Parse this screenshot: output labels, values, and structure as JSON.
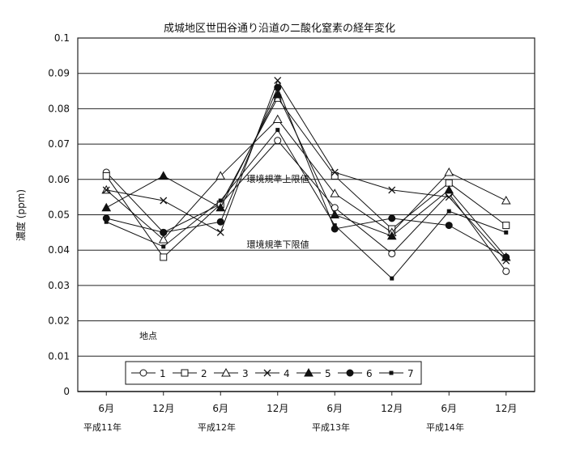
{
  "chart_data": {
    "type": "line",
    "title": "成城地区世田谷通り沿道の二酸化窒素の経年変化",
    "ylabel": "濃度 (ppm)",
    "xlabel": "",
    "ylim": [
      0,
      0.1
    ],
    "yticks": [
      "0",
      "0.01",
      "0.02",
      "0.03",
      "0.04",
      "0.05",
      "0.06",
      "0.07",
      "0.08",
      "0.09",
      "0.1"
    ],
    "categories": [
      "6月",
      "12月",
      "6月",
      "12月",
      "6月",
      "12月",
      "6月",
      "12月"
    ],
    "year_labels": [
      "平成11年",
      "平成12年",
      "平成13年",
      "平成14年"
    ],
    "grid": true,
    "legend_title": "地点",
    "legend_position": "bottom-left",
    "annotations": [
      "環境規準上限値",
      "環境規準下限値"
    ],
    "series": [
      {
        "name": "1",
        "marker": "circle-open",
        "values": [
          0.062,
          0.045,
          0.053,
          0.071,
          0.052,
          0.039,
          0.056,
          0.034
        ]
      },
      {
        "name": "2",
        "marker": "square-open",
        "values": [
          0.061,
          0.038,
          0.053,
          0.083,
          0.061,
          0.046,
          0.059,
          0.047
        ]
      },
      {
        "name": "3",
        "marker": "triangle-open",
        "values": [
          0.057,
          0.043,
          0.061,
          0.077,
          0.056,
          0.045,
          0.062,
          0.054
        ]
      },
      {
        "name": "4",
        "marker": "x",
        "values": [
          0.057,
          0.054,
          0.045,
          0.088,
          0.062,
          0.057,
          0.055,
          0.037
        ]
      },
      {
        "name": "5",
        "marker": "triangle-filled",
        "values": [
          0.052,
          0.061,
          0.052,
          0.084,
          0.05,
          0.044,
          0.057,
          0.038
        ]
      },
      {
        "name": "6",
        "marker": "circle-filled",
        "values": [
          0.049,
          0.045,
          0.048,
          0.086,
          0.046,
          0.049,
          0.047,
          0.038
        ]
      },
      {
        "name": "7",
        "marker": "square-filled",
        "values": [
          0.048,
          0.041,
          0.054,
          0.074,
          0.047,
          0.032,
          0.051,
          0.045
        ]
      }
    ]
  }
}
